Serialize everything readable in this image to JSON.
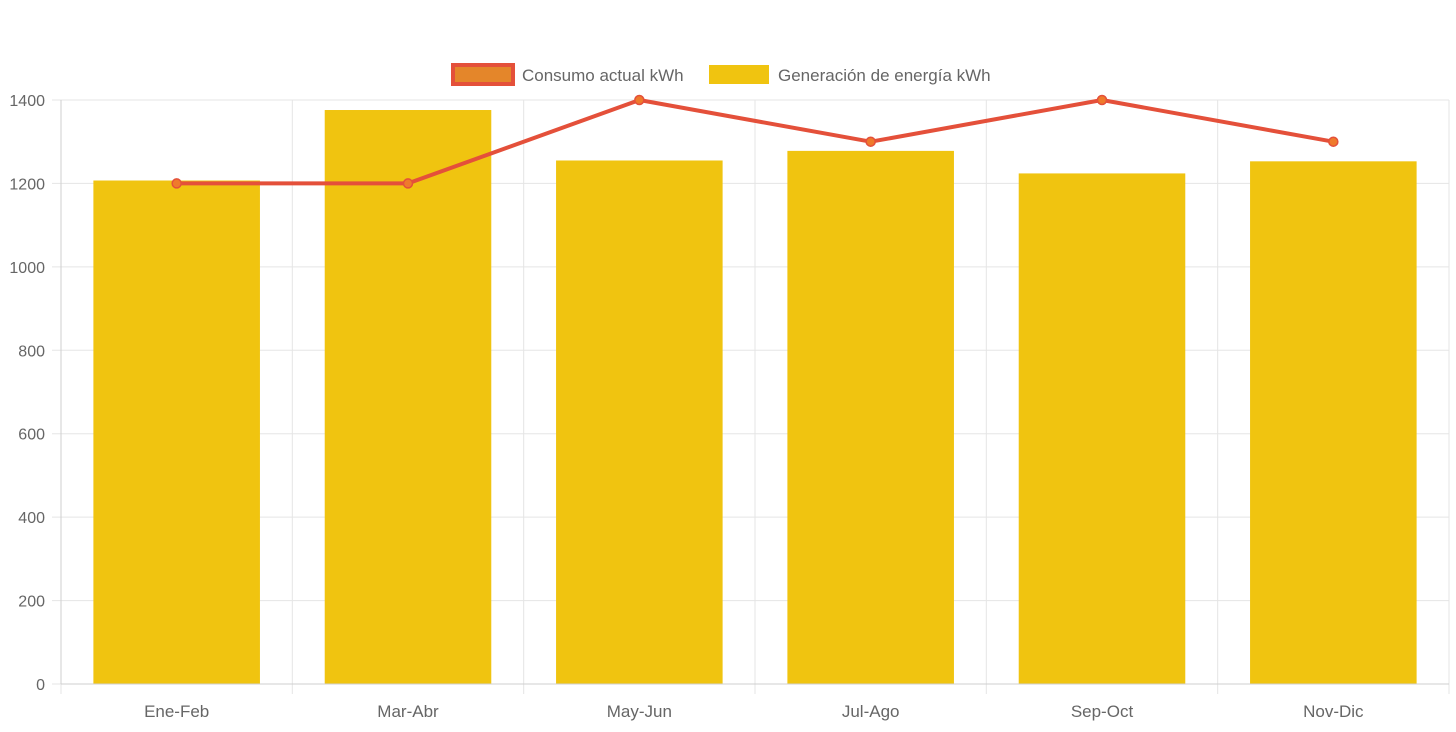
{
  "chart_data": {
    "type": "bar",
    "categories": [
      "Ene-Feb",
      "Mar-Abr",
      "May-Jun",
      "Jul-Ago",
      "Sep-Oct",
      "Nov-Dic"
    ],
    "series": [
      {
        "name": "Consumo actual kWh",
        "type": "line",
        "values": [
          1200,
          1200,
          1400,
          1300,
          1400,
          1300
        ],
        "color": "#e4503a",
        "point_color": "#ef7a2b"
      },
      {
        "name": "Generación de energía kWh",
        "type": "bar",
        "values": [
          1207,
          1376,
          1255,
          1278,
          1224,
          1253
        ],
        "color": "#f0c410"
      }
    ],
    "ylim": [
      0,
      1400
    ],
    "yticks": [
      0,
      200,
      400,
      600,
      800,
      1000,
      1200,
      1400
    ],
    "grid": true,
    "legend": "top-center",
    "title": "",
    "xlabel": "",
    "ylabel": ""
  }
}
